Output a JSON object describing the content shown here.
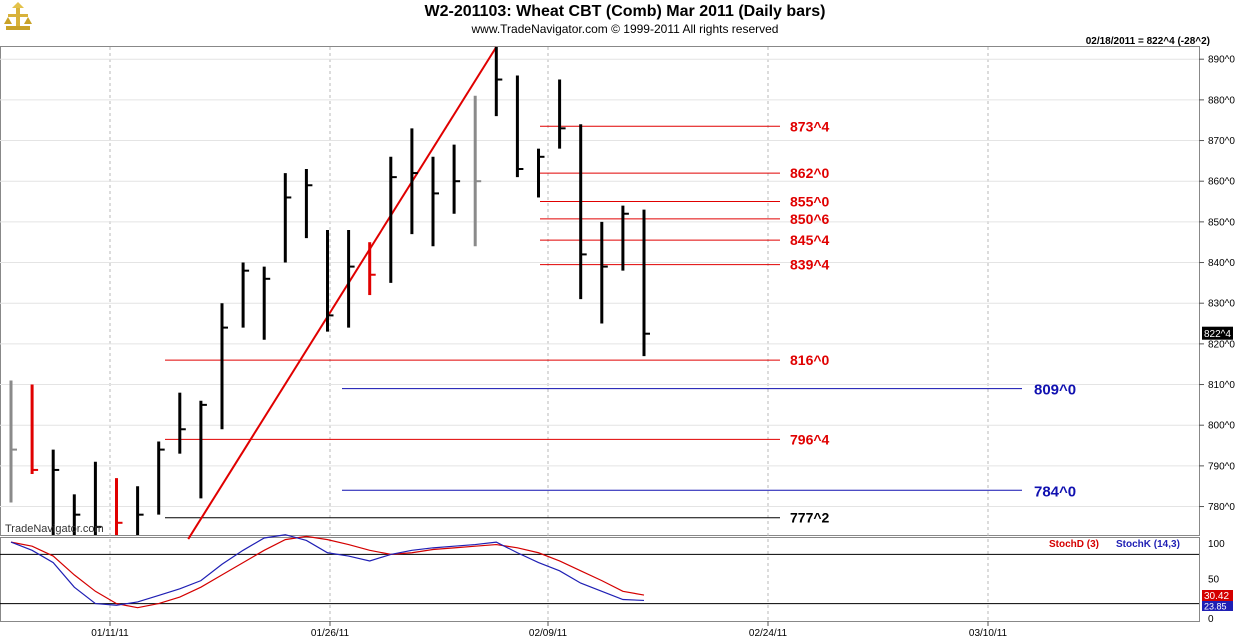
{
  "header": {
    "title": "W2-201103:  Wheat CBT (Comb) Mar 2011  (Daily bars)",
    "subtitle": "www.TradeNavigator.com © 1999-2011 All rights reserved",
    "info": "02/18/2011 = 822^4 (-28^2)",
    "watermark": "TradeNavigator.com"
  },
  "chart_data": [
    {
      "type": "bar",
      "title": "W2-201103:  Wheat CBT (Comb) Mar 2011  (Daily bars)",
      "xlabel": "",
      "ylabel": "",
      "ylim": [
        773,
        893
      ],
      "x_ticks": [
        "01/11/11",
        "01/26/11",
        "02/09/11",
        "02/24/11",
        "03/10/11"
      ],
      "y_ticks": [
        "780^0",
        "790^0",
        "800^0",
        "810^0",
        "820^0",
        "830^0",
        "840^0",
        "850^0",
        "860^0",
        "870^0",
        "880^0",
        "890^0"
      ],
      "last_price_label": "822^4",
      "bars": [
        {
          "h": 811,
          "l": 781,
          "c": 794,
          "color": "gray"
        },
        {
          "h": 810,
          "l": 788,
          "c": 789,
          "color": "red"
        },
        {
          "h": 794,
          "l": 772,
          "c": 789,
          "color": "black"
        },
        {
          "h": 783,
          "l": 772,
          "c": 778,
          "color": "black"
        },
        {
          "h": 791,
          "l": 770,
          "c": 775,
          "color": "black"
        },
        {
          "h": 787,
          "l": 770,
          "c": 776,
          "color": "red"
        },
        {
          "h": 785,
          "l": 768,
          "c": 778,
          "color": "black"
        },
        {
          "h": 796,
          "l": 778,
          "c": 794,
          "color": "black"
        },
        {
          "h": 808,
          "l": 793,
          "c": 799,
          "color": "black"
        },
        {
          "h": 806,
          "l": 782,
          "c": 805,
          "color": "black"
        },
        {
          "h": 830,
          "l": 799,
          "c": 824,
          "color": "black"
        },
        {
          "h": 840,
          "l": 824,
          "c": 838,
          "color": "black"
        },
        {
          "h": 839,
          "l": 821,
          "c": 836,
          "color": "black"
        },
        {
          "h": 862,
          "l": 840,
          "c": 856,
          "color": "black"
        },
        {
          "h": 863,
          "l": 846,
          "c": 859,
          "color": "black"
        },
        {
          "h": 848,
          "l": 823,
          "c": 827,
          "color": "black"
        },
        {
          "h": 848,
          "l": 824,
          "c": 839,
          "color": "black"
        },
        {
          "h": 845,
          "l": 832,
          "c": 837,
          "color": "red"
        },
        {
          "h": 866,
          "l": 835,
          "c": 861,
          "color": "black"
        },
        {
          "h": 873,
          "l": 847,
          "c": 862,
          "color": "black"
        },
        {
          "h": 866,
          "l": 844,
          "c": 857,
          "color": "black"
        },
        {
          "h": 869,
          "l": 852,
          "c": 860,
          "color": "black"
        },
        {
          "h": 881,
          "l": 844,
          "c": 860,
          "color": "gray"
        },
        {
          "h": 893,
          "l": 876,
          "c": 885,
          "color": "black"
        },
        {
          "h": 886,
          "l": 861,
          "c": 863,
          "color": "black"
        },
        {
          "h": 868,
          "l": 856,
          "c": 866,
          "color": "black"
        },
        {
          "h": 885,
          "l": 868,
          "c": 873,
          "color": "black"
        },
        {
          "h": 874,
          "l": 831,
          "c": 842,
          "color": "black"
        },
        {
          "h": 850,
          "l": 825,
          "c": 839,
          "color": "black"
        },
        {
          "h": 854,
          "l": 838,
          "c": 852,
          "color": "black"
        },
        {
          "h": 853,
          "l": 817,
          "c": 822.5,
          "color": "black"
        }
      ],
      "levels": [
        {
          "label": "873^4",
          "value": 873.5,
          "color": "red"
        },
        {
          "label": "862^0",
          "value": 862.0,
          "color": "red"
        },
        {
          "label": "855^0",
          "value": 855.0,
          "color": "red"
        },
        {
          "label": "850^6",
          "value": 850.75,
          "color": "red"
        },
        {
          "label": "845^4",
          "value": 845.5,
          "color": "red"
        },
        {
          "label": "839^4",
          "value": 839.5,
          "color": "red"
        },
        {
          "label": "816^0",
          "value": 816.0,
          "color": "red"
        },
        {
          "label": "809^0",
          "value": 809.0,
          "color": "blue"
        },
        {
          "label": "796^4",
          "value": 796.5,
          "color": "red"
        },
        {
          "label": "784^0",
          "value": 784.0,
          "color": "blue"
        },
        {
          "label": "777^2",
          "value": 777.25,
          "color": "black"
        }
      ],
      "trendline": {
        "from": {
          "bar": 8.4,
          "value": 772
        },
        "to": {
          "bar": 23,
          "value": 893
        },
        "color": "red"
      }
    },
    {
      "type": "line",
      "ylim": [
        0,
        100
      ],
      "y_ticks": [
        "0",
        "50",
        "100"
      ],
      "reference_lines": [
        80,
        20
      ],
      "value_labels": [
        "30.42",
        "23.85"
      ],
      "series": [
        {
          "name": "StochD (3)",
          "color": "#d40000",
          "values": [
            95,
            90,
            78,
            55,
            35,
            20,
            15,
            20,
            28,
            40,
            55,
            70,
            85,
            98,
            102,
            98,
            92,
            85,
            80,
            82,
            86,
            88,
            90,
            92,
            88,
            82,
            72,
            60,
            48,
            35,
            30.42
          ]
        },
        {
          "name": "StochK (14,3)",
          "color": "#1f1fb4",
          "values": [
            95,
            85,
            70,
            40,
            20,
            18,
            22,
            30,
            38,
            48,
            68,
            85,
            100,
            104,
            97,
            82,
            78,
            72,
            80,
            85,
            88,
            90,
            92,
            95,
            82,
            70,
            60,
            45,
            35,
            25,
            23.85
          ]
        }
      ]
    }
  ]
}
